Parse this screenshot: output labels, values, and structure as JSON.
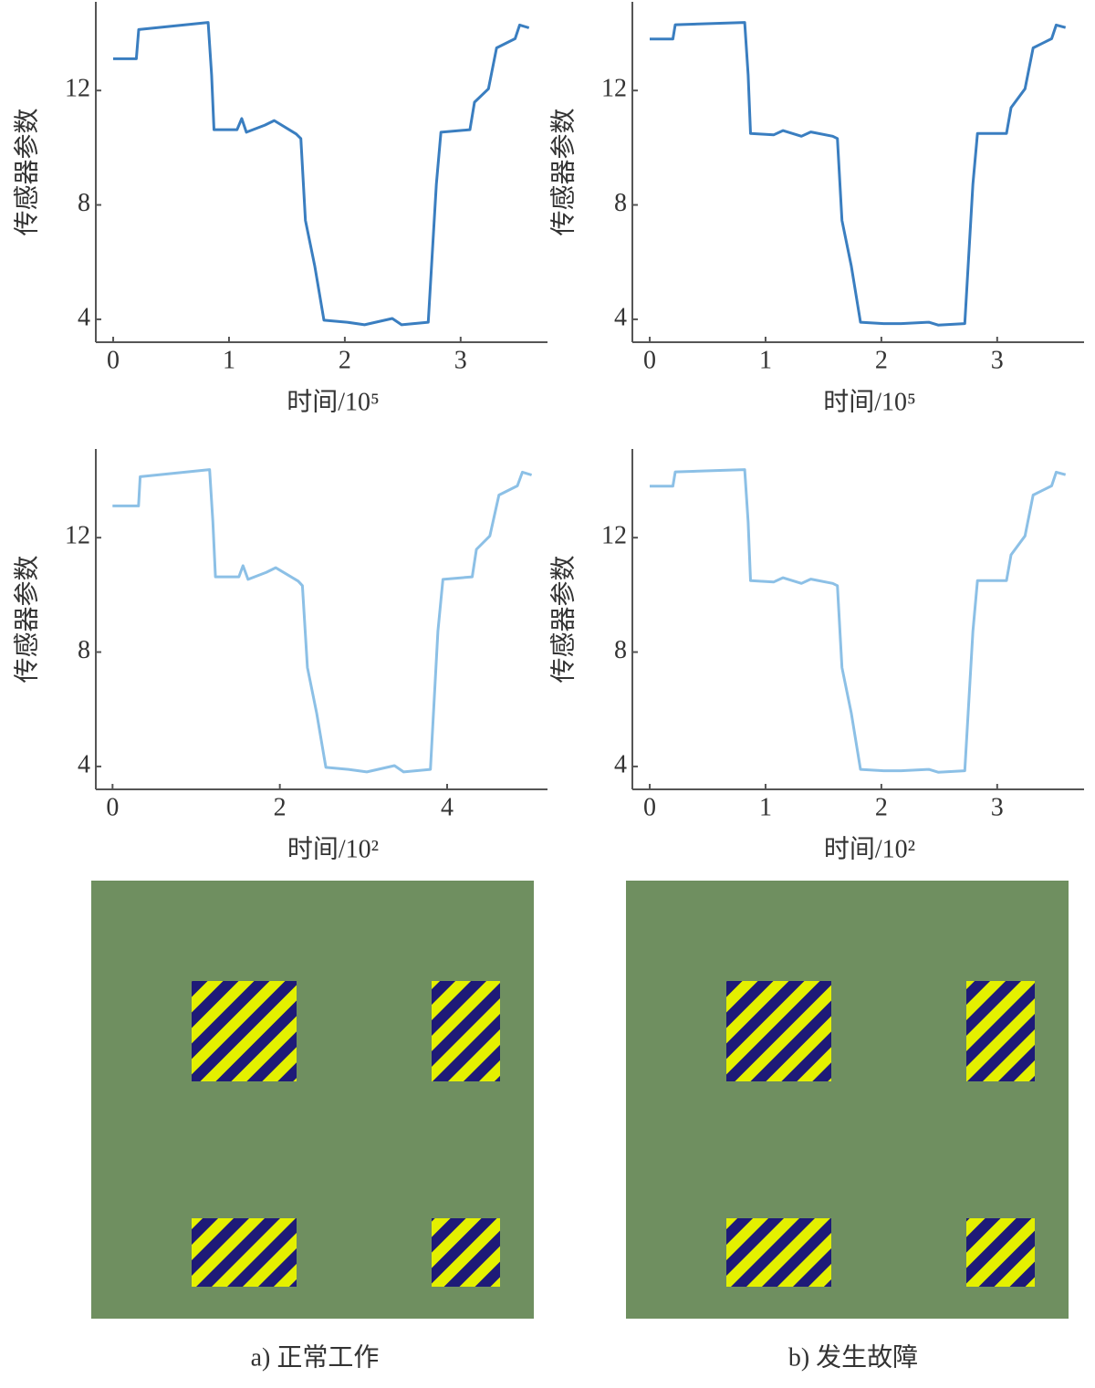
{
  "chart_data": [
    {
      "type": "line",
      "ylabel": "传感器参数",
      "xlabel": "时间/10⁵",
      "color": "#3a7ec0",
      "xlim": [
        -0.15,
        3.75
      ],
      "xticks": [
        0,
        1,
        2,
        3
      ],
      "ylim": [
        3.2,
        15.1
      ],
      "yticks": [
        4,
        8,
        12
      ],
      "x": [
        0,
        0.2,
        0.22,
        0.82,
        0.85,
        0.87,
        1.07,
        1.11,
        1.15,
        1.31,
        1.39,
        1.58,
        1.62,
        1.66,
        1.74,
        1.82,
        2.02,
        2.17,
        2.41,
        2.49,
        2.72,
        2.79,
        2.83,
        3.08,
        3.12,
        3.24,
        3.31,
        3.47,
        3.51,
        3.59
      ],
      "values": [
        13.11,
        13.11,
        14.13,
        14.38,
        12.54,
        10.63,
        10.63,
        11.02,
        10.54,
        10.79,
        10.95,
        10.48,
        10.32,
        7.46,
        5.87,
        3.97,
        3.9,
        3.81,
        4.03,
        3.81,
        3.9,
        8.73,
        10.54,
        10.63,
        11.59,
        12.06,
        13.49,
        13.81,
        14.29,
        14.19
      ]
    },
    {
      "type": "line",
      "ylabel": "传感器参数",
      "xlabel": "时间/10⁵",
      "color": "#3a7ec0",
      "xlim": [
        -0.15,
        3.75
      ],
      "xticks": [
        0,
        1,
        2,
        3
      ],
      "ylim": [
        3.2,
        15.1
      ],
      "yticks": [
        4,
        8,
        12
      ],
      "x": [
        0,
        0.2,
        0.22,
        0.82,
        0.85,
        0.87,
        1.07,
        1.15,
        1.31,
        1.39,
        1.58,
        1.62,
        1.66,
        1.74,
        1.82,
        2.02,
        2.17,
        2.41,
        2.49,
        2.72,
        2.79,
        2.83,
        3.08,
        3.12,
        3.24,
        3.31,
        3.47,
        3.51,
        3.59
      ],
      "values": [
        13.8,
        13.8,
        14.3,
        14.38,
        12.54,
        10.5,
        10.45,
        10.6,
        10.4,
        10.55,
        10.4,
        10.32,
        7.46,
        5.87,
        3.9,
        3.85,
        3.85,
        3.9,
        3.8,
        3.85,
        8.73,
        10.5,
        10.5,
        11.4,
        12.06,
        13.49,
        13.81,
        14.29,
        14.2
      ]
    },
    {
      "type": "line",
      "ylabel": "传感器参数",
      "xlabel": "时间/10²",
      "color": "#8cc0e6",
      "xlim": [
        -0.2,
        5.2
      ],
      "xticks": [
        0,
        2,
        4
      ],
      "ylim": [
        3.2,
        15.1
      ],
      "yticks": [
        4,
        8,
        12
      ],
      "x": [
        0,
        0.31,
        0.33,
        1.16,
        1.2,
        1.23,
        1.51,
        1.56,
        1.62,
        1.84,
        1.95,
        2.22,
        2.27,
        2.33,
        2.44,
        2.55,
        2.82,
        3.04,
        3.37,
        3.48,
        3.8,
        3.89,
        3.95,
        4.3,
        4.35,
        4.51,
        4.62,
        4.84,
        4.9,
        5.01
      ],
      "values": [
        13.11,
        13.11,
        14.13,
        14.38,
        12.54,
        10.63,
        10.63,
        11.02,
        10.54,
        10.79,
        10.95,
        10.48,
        10.32,
        7.46,
        5.87,
        3.97,
        3.9,
        3.81,
        4.03,
        3.81,
        3.9,
        8.73,
        10.54,
        10.63,
        11.59,
        12.06,
        13.49,
        13.81,
        14.29,
        14.19
      ]
    },
    {
      "type": "line",
      "ylabel": "传感器参数",
      "xlabel": "时间/10²",
      "color": "#8cc0e6",
      "xlim": [
        -0.15,
        3.75
      ],
      "xticks": [
        0,
        1,
        2,
        3
      ],
      "ylim": [
        3.2,
        15.1
      ],
      "yticks": [
        4,
        8,
        12
      ],
      "x": [
        0,
        0.2,
        0.22,
        0.82,
        0.85,
        0.87,
        1.07,
        1.15,
        1.31,
        1.39,
        1.58,
        1.62,
        1.66,
        1.74,
        1.82,
        2.02,
        2.17,
        2.41,
        2.49,
        2.72,
        2.79,
        2.83,
        3.08,
        3.12,
        3.24,
        3.31,
        3.47,
        3.51,
        3.59
      ],
      "values": [
        13.8,
        13.8,
        14.3,
        14.38,
        12.54,
        10.5,
        10.45,
        10.6,
        10.4,
        10.55,
        10.4,
        10.32,
        7.46,
        5.87,
        3.9,
        3.85,
        3.85,
        3.9,
        3.8,
        3.85,
        8.73,
        10.5,
        10.5,
        11.4,
        12.06,
        13.49,
        13.81,
        14.29,
        14.2
      ]
    }
  ],
  "captions": [
    "a)   正常工作",
    "b)   发生故障"
  ]
}
